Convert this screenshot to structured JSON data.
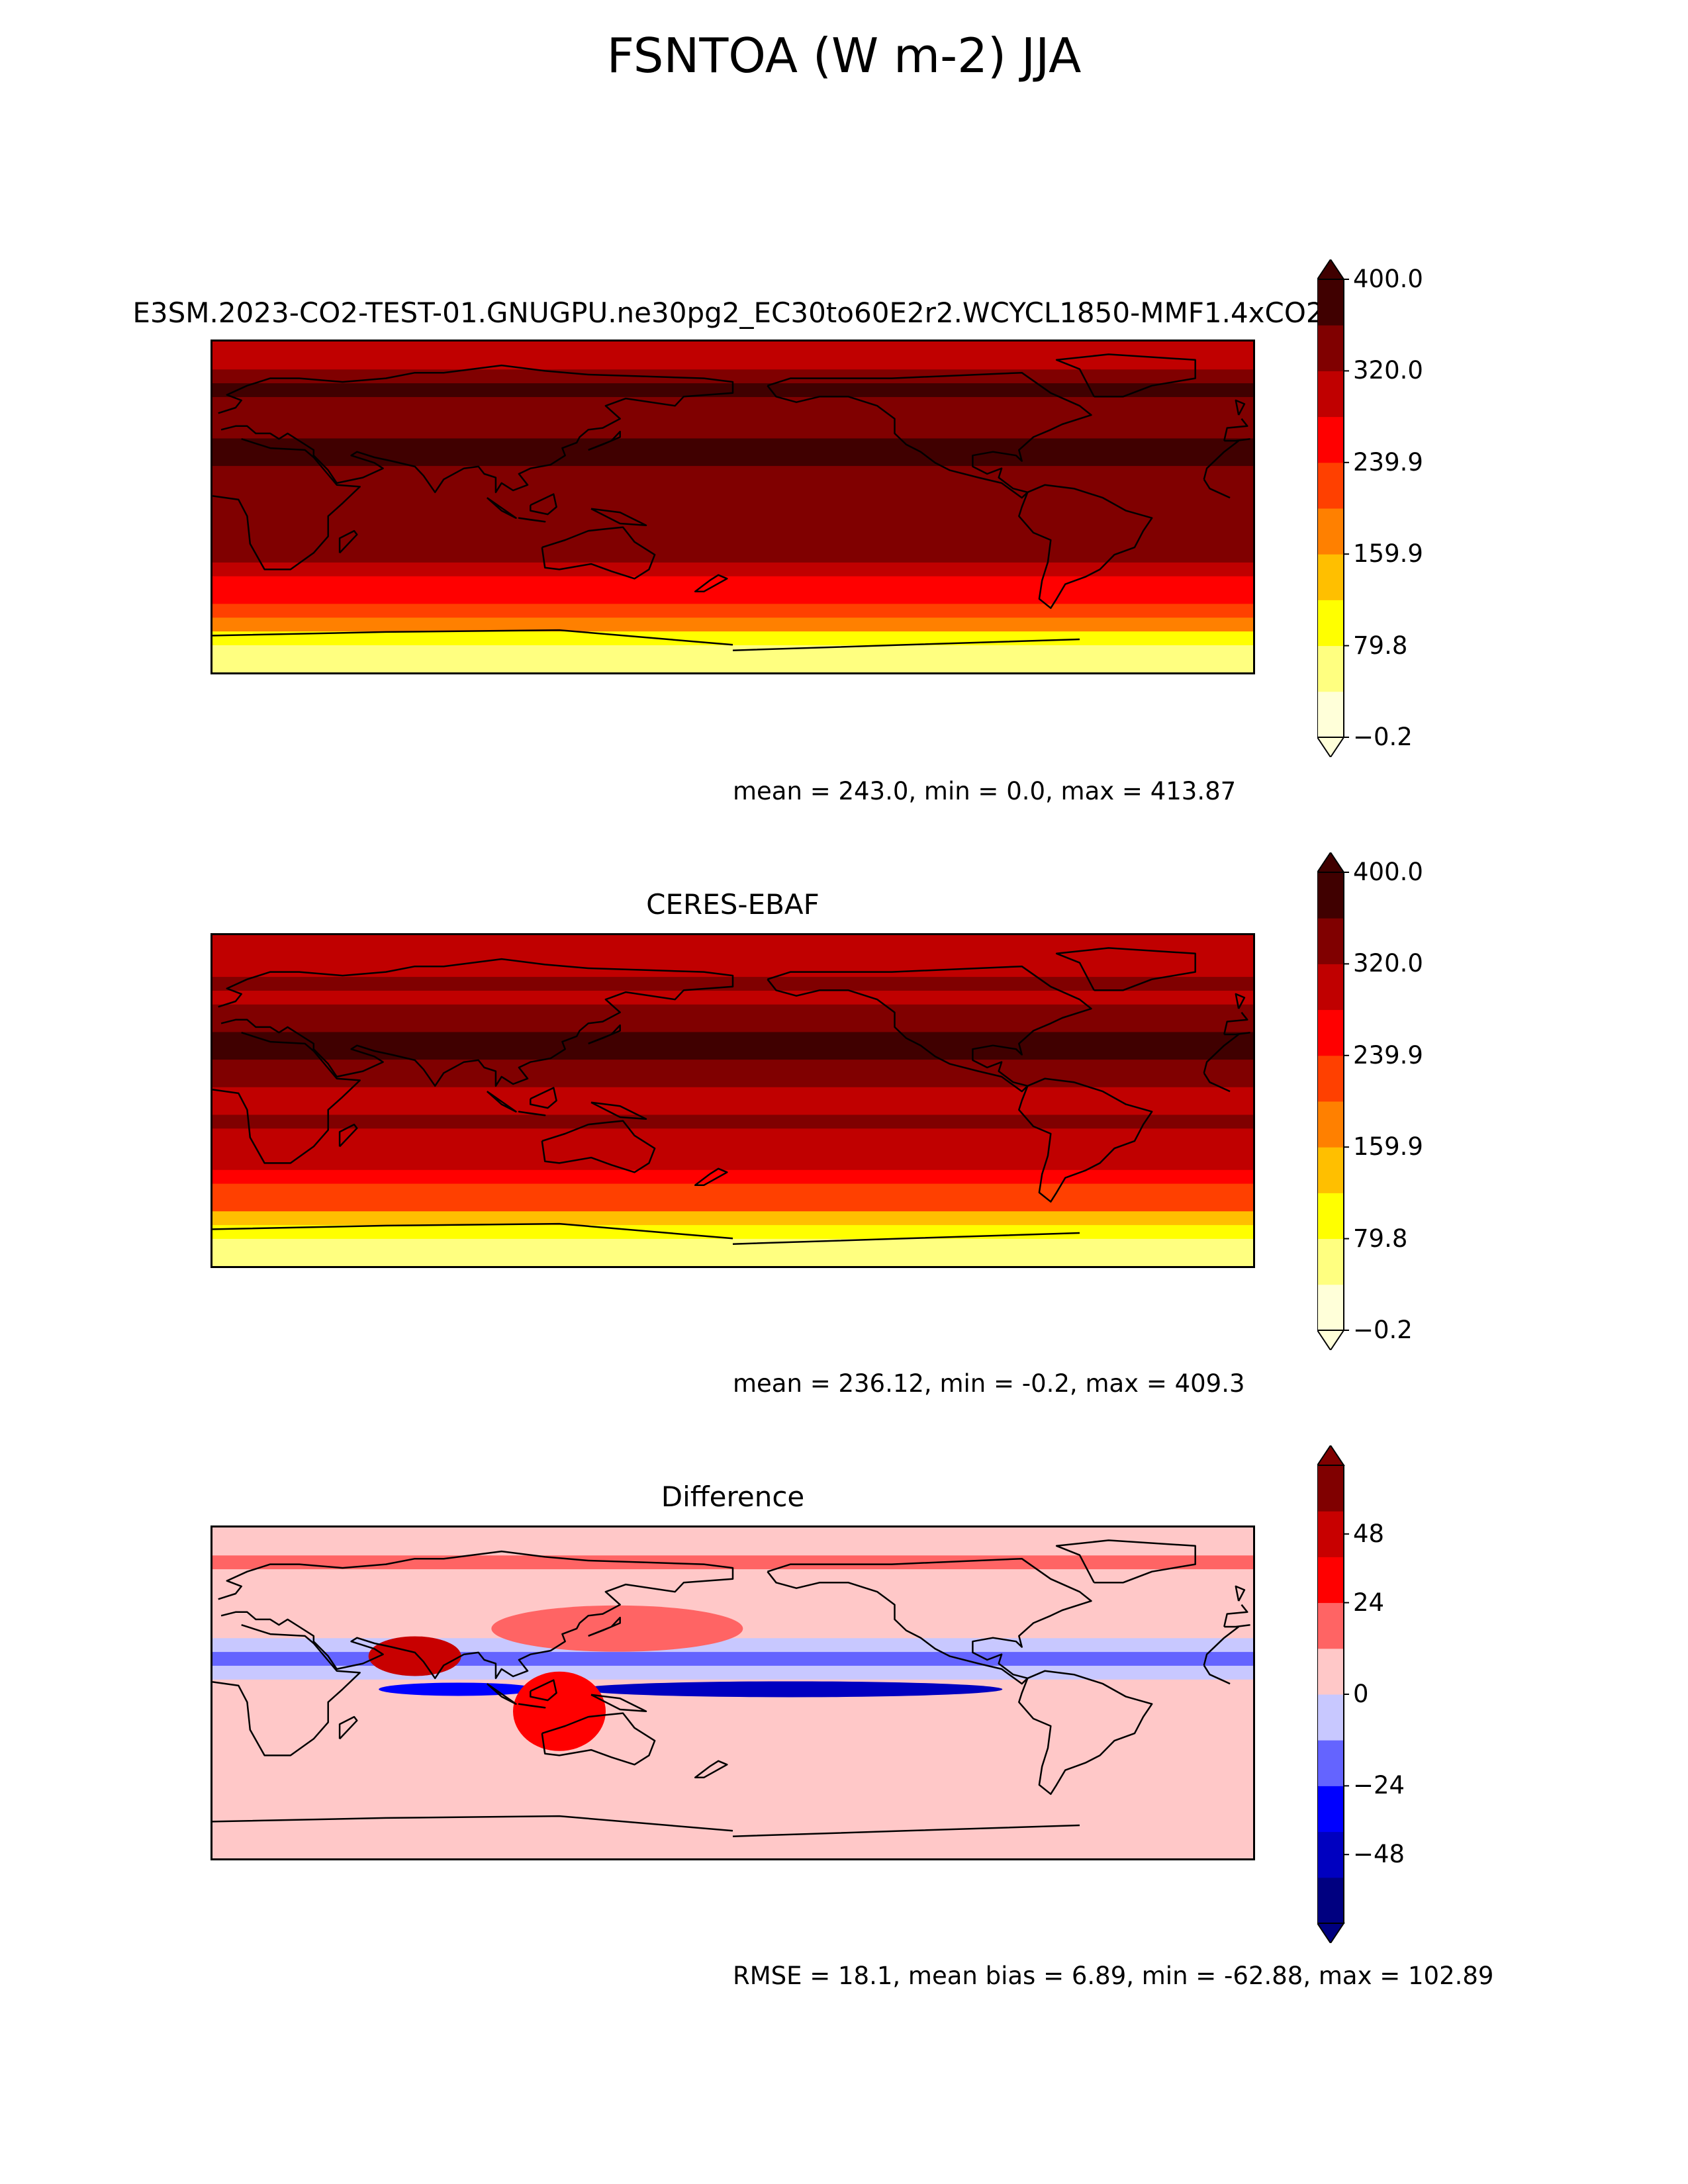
{
  "title": "FSNTOA (W m-2) JJA",
  "colors": {
    "hot": [
      "#ffffd9",
      "#ffff80",
      "#ffff00",
      "#ffbf00",
      "#ff8000",
      "#ff4000",
      "#ff0000",
      "#c00000",
      "#800000",
      "#400000"
    ],
    "diff": [
      "#000080",
      "#0000c0",
      "#0000ff",
      "#6464ff",
      "#c8c8ff",
      "#ffc8c8",
      "#ff6464",
      "#ff0000",
      "#c80000",
      "#800000"
    ]
  },
  "chart_data": [
    {
      "type": "heatmap",
      "name": "test",
      "title": "E3SM.2023-CO2-TEST-01.GNUGPU.ne30pg2_EC30to60E2r2.WCYCL1850-MMF1.4xCO2",
      "stats": "mean = 243.0, min = 0.0, max = 413.87",
      "colorbar": {
        "ticks": [
          "400.0",
          "320.0",
          "239.9",
          "159.9",
          "79.8",
          "−0.2"
        ],
        "levels": [
          -0.2,
          400.0
        ],
        "extend": "both"
      },
      "band_values": [
        40,
        75,
        110,
        160,
        205,
        240,
        275,
        300,
        320,
        330,
        340,
        335,
        320,
        330,
        345,
        370,
        380,
        350,
        330,
        320,
        360,
        330,
        300,
        300
      ]
    },
    {
      "type": "heatmap",
      "name": "reference",
      "title": "CERES-EBAF",
      "stats": "mean = 236.12, min = -0.2, max = 409.3",
      "colorbar": {
        "ticks": [
          "400.0",
          "320.0",
          "239.9",
          "159.9",
          "79.8",
          "−0.2"
        ],
        "levels": [
          -0.2,
          400.0
        ],
        "extend": "both"
      },
      "band_values": [
        40,
        75,
        110,
        155,
        200,
        235,
        265,
        290,
        305,
        315,
        320,
        315,
        300,
        320,
        340,
        360,
        365,
        340,
        320,
        300,
        340,
        310,
        300,
        300
      ]
    },
    {
      "type": "heatmap",
      "name": "difference",
      "title": "Difference",
      "stats": "RMSE = 18.1, mean bias = 6.89, min = -62.88, max = 102.89",
      "colorbar": {
        "ticks": [
          "48",
          "24",
          "0",
          "−24",
          "−48"
        ],
        "levels": [
          -60,
          60
        ],
        "extend": "both"
      },
      "band_values": [
        4,
        4,
        3,
        3,
        4,
        4,
        6,
        3,
        4,
        6,
        5,
        5,
        3,
        -8,
        -20,
        -10,
        6,
        8,
        6,
        7,
        10,
        12,
        6,
        4
      ]
    }
  ]
}
